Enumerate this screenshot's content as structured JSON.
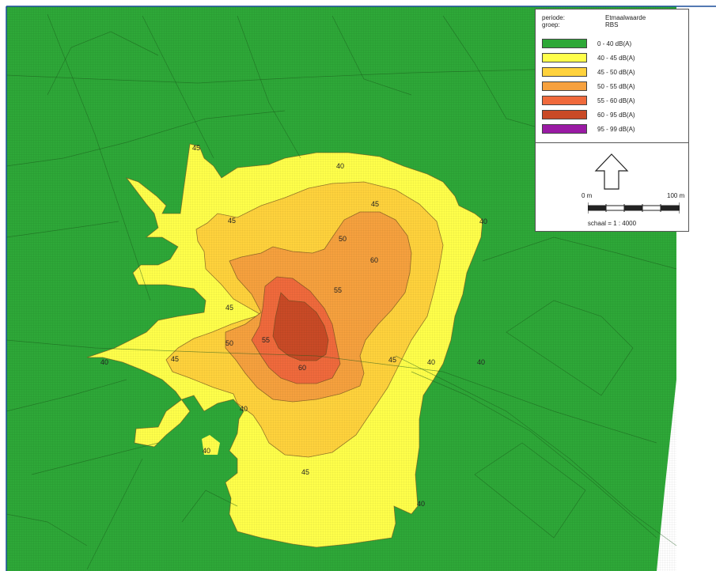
{
  "legend": {
    "periode_label": "periode:",
    "periode_value": "Etmaalwaarde",
    "groep_label": "groep:",
    "groep_value": "RBS",
    "classes": [
      {
        "label": "0 - 40 dB(A)",
        "color": "#2ea838"
      },
      {
        "label": "40 - 45 dB(A)",
        "color": "#ffff4a"
      },
      {
        "label": "45 - 50 dB(A)",
        "color": "#ffd23c"
      },
      {
        "label": "50 - 55 dB(A)",
        "color": "#f6a13e"
      },
      {
        "label": "55 - 60 dB(A)",
        "color": "#f06a3c"
      },
      {
        "label": "60 - 95 dB(A)",
        "color": "#c94a26"
      },
      {
        "label": "95 - 99 dB(A)",
        "color": "#9a1aa4"
      }
    ],
    "scale_start": "0 m",
    "scale_end": "100 m",
    "scale_text": "schaal = 1 : 4000"
  },
  "contour_labels": [
    "45",
    "40",
    "45",
    "45",
    "50",
    "60",
    "45",
    "55",
    "40",
    "50",
    "55",
    "45",
    "60",
    "45",
    "40",
    "40",
    "40",
    "40",
    "45",
    "40",
    "40"
  ]
}
